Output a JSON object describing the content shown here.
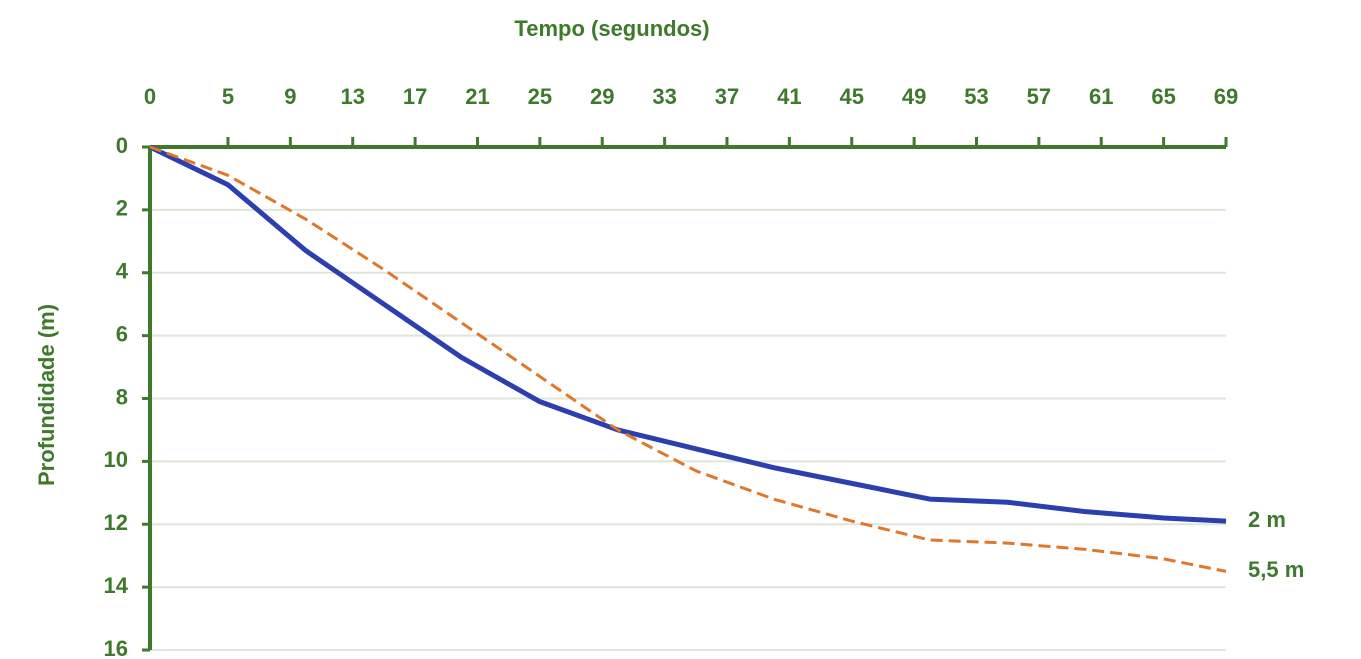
{
  "chart_data": {
    "type": "line",
    "x_label": "Tempo (segundos)",
    "y_label": "Profundidade (m)",
    "x": [
      0,
      5,
      10,
      15,
      20,
      25,
      30,
      35,
      40,
      45,
      50,
      55,
      60,
      65,
      69
    ],
    "series": [
      {
        "name": "2 m",
        "color": "#2b3fae",
        "dashed": false,
        "values": [
          0,
          1.2,
          3.3,
          5.0,
          6.7,
          8.1,
          9.0,
          9.6,
          10.2,
          10.7,
          11.2,
          11.3,
          11.6,
          11.8,
          11.9
        ]
      },
      {
        "name": "5,5 m",
        "color": "#e0772a",
        "dashed": true,
        "values": [
          0,
          0.9,
          2.3,
          3.9,
          5.6,
          7.3,
          9.0,
          10.3,
          11.2,
          11.9,
          12.5,
          12.6,
          12.8,
          13.1,
          13.5
        ]
      }
    ],
    "xlim": [
      0,
      69
    ],
    "xticks": [
      0,
      5,
      9,
      13,
      17,
      21,
      25,
      29,
      33,
      37,
      41,
      45,
      49,
      53,
      57,
      61,
      65,
      69
    ],
    "ylim": [
      0,
      16
    ],
    "yticks": [
      0,
      2,
      4,
      6,
      8,
      10,
      12,
      14,
      16
    ],
    "y_inverted": true,
    "grid": true,
    "axis_color": "#3e7a2c"
  }
}
